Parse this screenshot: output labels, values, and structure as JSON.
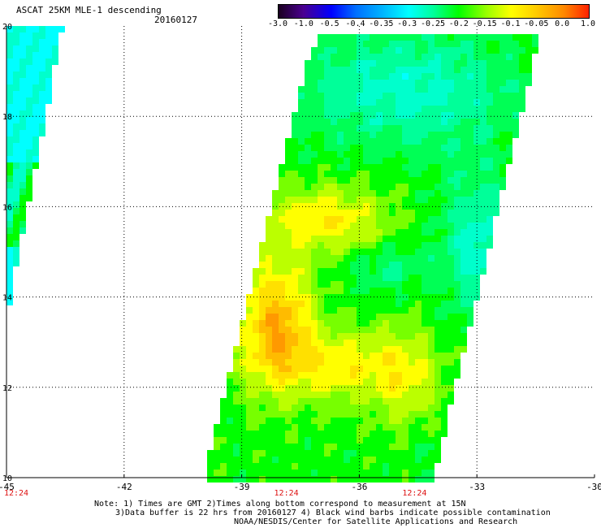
{
  "header": {
    "title": "ASCAT 25KM MLE-1 descending",
    "date": "20160127"
  },
  "colorbar": {
    "labels": [
      "-3.0",
      "-1.0",
      "-0.5",
      "-0.4",
      "-0.35",
      "-0.3",
      "-0.25",
      "-0.2",
      "-0.15",
      "-0.1",
      "-0.05",
      "0.0",
      "1.0"
    ],
    "colors": [
      "#1a0020",
      "#4a0090",
      "#0000ff",
      "#0070ff",
      "#00b0ff",
      "#00ffff",
      "#00ff99",
      "#00ff00",
      "#99ff00",
      "#ffff00",
      "#ffcc00",
      "#ff8800",
      "#ff2200"
    ]
  },
  "axes": {
    "x_ticks": [
      "-45",
      "-42",
      "-39",
      "-36",
      "-33",
      "-30"
    ],
    "y_ticks": [
      "20",
      "18",
      "16",
      "14",
      "12",
      "10"
    ],
    "time_labels": [
      "12:24",
      "12:24",
      "12:24"
    ]
  },
  "notes": {
    "line1": "Note: 1) Times are GMT 2)Times along bottom correspond to measurement at 15N",
    "line2": "3)Data buffer is 22 hrs from 20160127 4) Black wind barbs indicate possible contamination",
    "line3": "NOAA/NESDIS/Center for Satellite Applications and Research"
  }
}
